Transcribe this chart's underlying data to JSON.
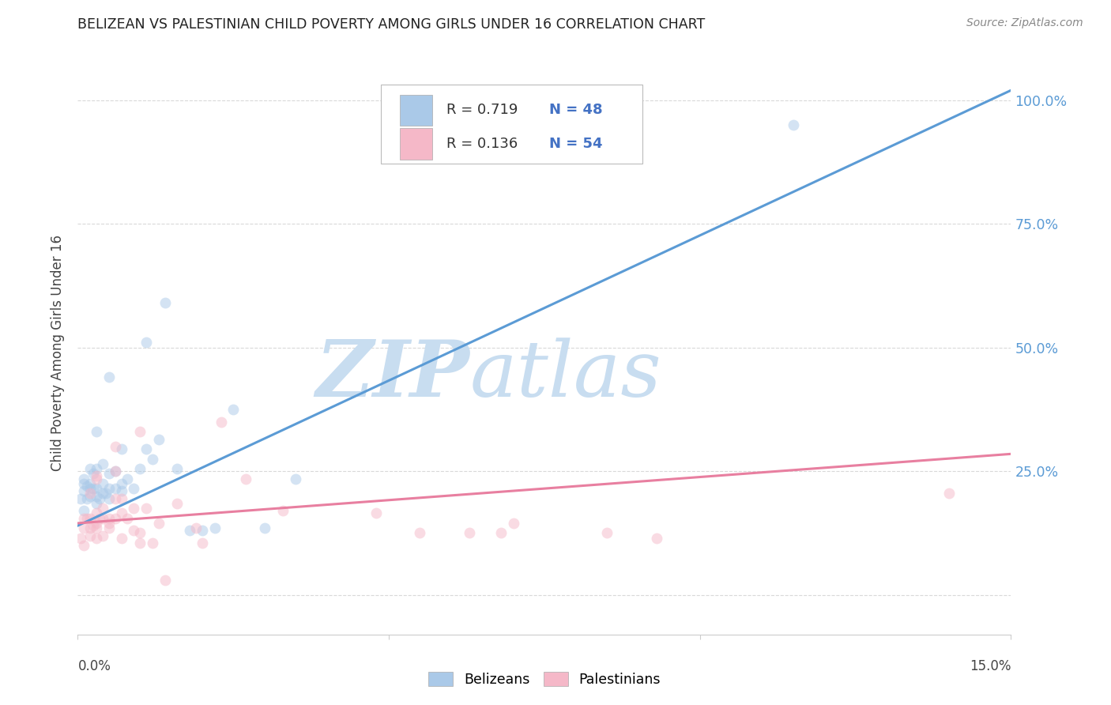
{
  "title": "BELIZEAN VS PALESTINIAN CHILD POVERTY AMONG GIRLS UNDER 16 CORRELATION CHART",
  "source": "Source: ZipAtlas.com",
  "ylabel": "Child Poverty Among Girls Under 16",
  "ytick_positions": [
    0.0,
    0.25,
    0.5,
    0.75,
    1.0
  ],
  "ytick_labels": [
    "",
    "25.0%",
    "50.0%",
    "75.0%",
    "100.0%"
  ],
  "xmin": 0.0,
  "xmax": 0.15,
  "ymin": -0.08,
  "ymax": 1.06,
  "watermark_zip": "ZIP",
  "watermark_atlas": "atlas",
  "legend_r1": "R = 0.719",
  "legend_n1": "N = 48",
  "legend_r2": "R = 0.136",
  "legend_n2": "N = 54",
  "legend_label1": "Belizeans",
  "legend_label2": "Palestinians",
  "blue_color": "#aac9e8",
  "pink_color": "#f5b8c8",
  "blue_line_color": "#5b9bd5",
  "pink_line_color": "#e87fa0",
  "accent_color": "#4472c4",
  "blue_scatter_x": [
    0.0005,
    0.001,
    0.001,
    0.001,
    0.0015,
    0.0015,
    0.002,
    0.002,
    0.002,
    0.002,
    0.0025,
    0.0025,
    0.003,
    0.003,
    0.003,
    0.003,
    0.003,
    0.0035,
    0.004,
    0.004,
    0.004,
    0.0045,
    0.005,
    0.005,
    0.005,
    0.005,
    0.006,
    0.006,
    0.007,
    0.007,
    0.007,
    0.008,
    0.009,
    0.01,
    0.011,
    0.011,
    0.012,
    0.013,
    0.014,
    0.016,
    0.018,
    0.02,
    0.022,
    0.025,
    0.03,
    0.035,
    0.115,
    0.001
  ],
  "blue_scatter_y": [
    0.195,
    0.21,
    0.225,
    0.235,
    0.195,
    0.22,
    0.2,
    0.215,
    0.225,
    0.255,
    0.215,
    0.245,
    0.185,
    0.2,
    0.215,
    0.255,
    0.33,
    0.195,
    0.205,
    0.225,
    0.265,
    0.205,
    0.195,
    0.215,
    0.245,
    0.44,
    0.215,
    0.25,
    0.21,
    0.225,
    0.295,
    0.235,
    0.215,
    0.255,
    0.295,
    0.51,
    0.275,
    0.315,
    0.59,
    0.255,
    0.13,
    0.13,
    0.135,
    0.375,
    0.135,
    0.235,
    0.95,
    0.17
  ],
  "pink_scatter_x": [
    0.0005,
    0.001,
    0.001,
    0.001,
    0.0015,
    0.002,
    0.002,
    0.002,
    0.002,
    0.0025,
    0.003,
    0.003,
    0.003,
    0.003,
    0.003,
    0.0035,
    0.004,
    0.004,
    0.004,
    0.005,
    0.005,
    0.005,
    0.006,
    0.006,
    0.006,
    0.006,
    0.007,
    0.007,
    0.007,
    0.008,
    0.009,
    0.009,
    0.01,
    0.01,
    0.01,
    0.011,
    0.012,
    0.013,
    0.014,
    0.016,
    0.019,
    0.02,
    0.023,
    0.027,
    0.033,
    0.048,
    0.055,
    0.063,
    0.068,
    0.07,
    0.085,
    0.093,
    0.003,
    0.14
  ],
  "pink_scatter_y": [
    0.115,
    0.1,
    0.135,
    0.155,
    0.155,
    0.12,
    0.135,
    0.155,
    0.205,
    0.14,
    0.115,
    0.135,
    0.145,
    0.165,
    0.235,
    0.155,
    0.12,
    0.175,
    0.155,
    0.135,
    0.155,
    0.145,
    0.155,
    0.195,
    0.25,
    0.3,
    0.115,
    0.165,
    0.195,
    0.155,
    0.13,
    0.175,
    0.105,
    0.125,
    0.33,
    0.175,
    0.105,
    0.145,
    0.03,
    0.185,
    0.135,
    0.105,
    0.35,
    0.235,
    0.17,
    0.165,
    0.125,
    0.125,
    0.125,
    0.145,
    0.125,
    0.115,
    0.24,
    0.205
  ],
  "blue_trend_x": [
    0.0,
    0.15
  ],
  "blue_trend_y": [
    0.14,
    1.02
  ],
  "pink_trend_x": [
    0.0,
    0.15
  ],
  "pink_trend_y": [
    0.145,
    0.285
  ],
  "grid_color": "#d9d9d9",
  "background_color": "#ffffff",
  "scatter_size": 100,
  "scatter_alpha": 0.5
}
